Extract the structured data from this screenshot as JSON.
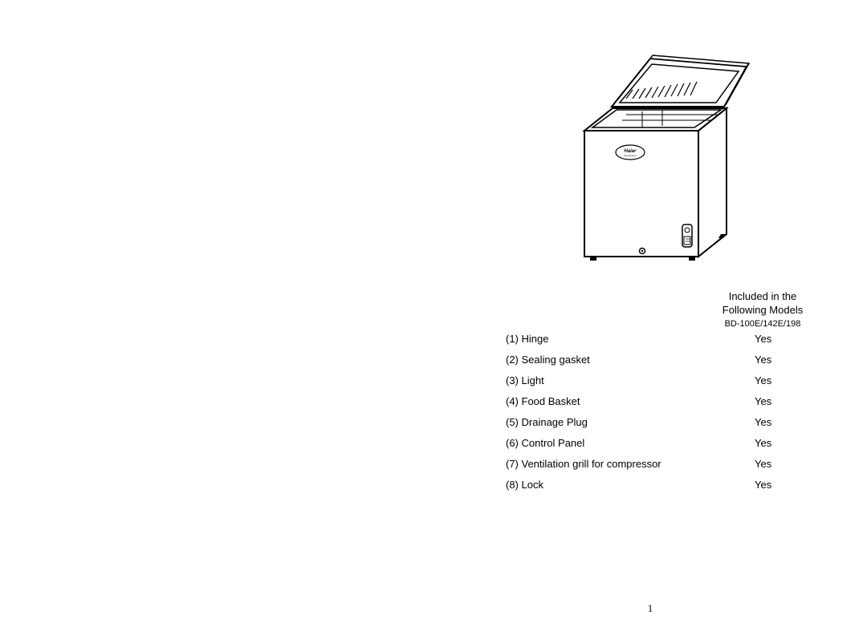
{
  "header": {
    "line1": "Included in the",
    "line2": "Following Models",
    "model": "BD-100E/142E/198"
  },
  "features": [
    {
      "num": "(1)",
      "name": "Hinge",
      "included": "Yes"
    },
    {
      "num": "(2)",
      "name": "Sealing gasket",
      "included": "Yes"
    },
    {
      "num": "(3)",
      "name": "Light",
      "included": "Yes"
    },
    {
      "num": "(4)",
      "name": "Food Basket",
      "included": "Yes"
    },
    {
      "num": "(5)",
      "name": "Drainage Plug",
      "included": "Yes"
    },
    {
      "num": "(6)",
      "name": "Control Panel",
      "included": "Yes"
    },
    {
      "num": "(7)",
      "name": "Ventilation grill for compressor",
      "included": "Yes"
    },
    {
      "num": "(8)",
      "name": "Lock",
      "included": "Yes"
    }
  ],
  "pageNumber": "1",
  "brand": "Haier",
  "illustration": {
    "stroke": "#000000",
    "strokeWidth": 2,
    "fill": "#ffffff"
  }
}
